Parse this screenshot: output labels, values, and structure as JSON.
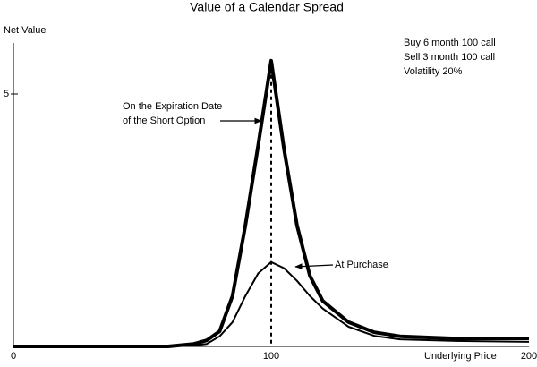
{
  "chart_data": {
    "type": "line",
    "title": "Value of a Calendar Spread",
    "ylabel": "Net Value",
    "xlabel": "Underlying Price",
    "notes": [
      "Buy 6 month 100 call",
      "Sell 3 month 100 call",
      "Volatility 20%"
    ],
    "annotations": [
      "On the Expiration Date",
      "of the Short Option",
      "At Purchase"
    ],
    "x": [
      0,
      20,
      40,
      60,
      70,
      75,
      80,
      85,
      90,
      95,
      100,
      105,
      110,
      115,
      120,
      130,
      140,
      150,
      170,
      200
    ],
    "series": [
      {
        "color": "#000000",
        "width": 4,
        "values": [
          0,
          0,
          0,
          0,
          0.05,
          0.12,
          0.3,
          1.0,
          2.4,
          4.0,
          5.66,
          3.9,
          2.4,
          1.4,
          0.9,
          0.48,
          0.28,
          0.2,
          0.16,
          0.16
        ]
      },
      {
        "color": "#000000",
        "width": 2,
        "values": [
          0,
          0,
          0,
          0,
          0.02,
          0.05,
          0.2,
          0.48,
          1.0,
          1.45,
          1.67,
          1.55,
          1.3,
          1.0,
          0.75,
          0.39,
          0.21,
          0.14,
          0.11,
          0.09
        ]
      }
    ],
    "xlim": [
      0,
      200
    ],
    "xticks": [
      0,
      100,
      200
    ],
    "ylim": [
      0,
      6
    ],
    "yticks": [
      5
    ],
    "grid": false
  }
}
